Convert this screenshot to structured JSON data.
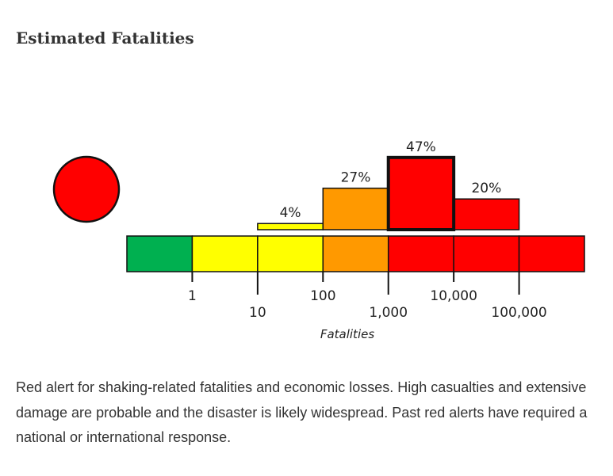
{
  "title": "Estimated Fatalities",
  "alert_color": "#ff0000",
  "chart_data": {
    "type": "bar",
    "title": "Estimated Fatalities",
    "xlabel": "Fatalities",
    "scale_bins": [
      {
        "range": "0-1",
        "color": "#00b050"
      },
      {
        "range": "1-10",
        "color": "#ffff00"
      },
      {
        "range": "10-100",
        "color": "#ffff00"
      },
      {
        "range": "100-1,000",
        "color": "#ff9900"
      },
      {
        "range": "1,000-10,000",
        "color": "#ff0000"
      },
      {
        "range": "10,000-100,000",
        "color": "#ff0000"
      },
      {
        "range": "100,000+",
        "color": "#ff0000"
      }
    ],
    "ticks": [
      "1",
      "10",
      "100",
      "1,000",
      "10,000",
      "100,000"
    ],
    "bars": [
      {
        "bin": 2,
        "value": 4,
        "label": "4%",
        "color": "#ffff00",
        "highlight": false
      },
      {
        "bin": 3,
        "value": 27,
        "label": "27%",
        "color": "#ff9900",
        "highlight": false
      },
      {
        "bin": 4,
        "value": 47,
        "label": "47%",
        "color": "#ff0000",
        "highlight": true
      },
      {
        "bin": 5,
        "value": 20,
        "label": "20%",
        "color": "#ff0000",
        "highlight": false
      }
    ]
  },
  "description": "Red alert for shaking-related fatalities and economic losses. High casualties and extensive damage are probable and the disaster is likely widespread. Past red alerts have required a national or international response."
}
